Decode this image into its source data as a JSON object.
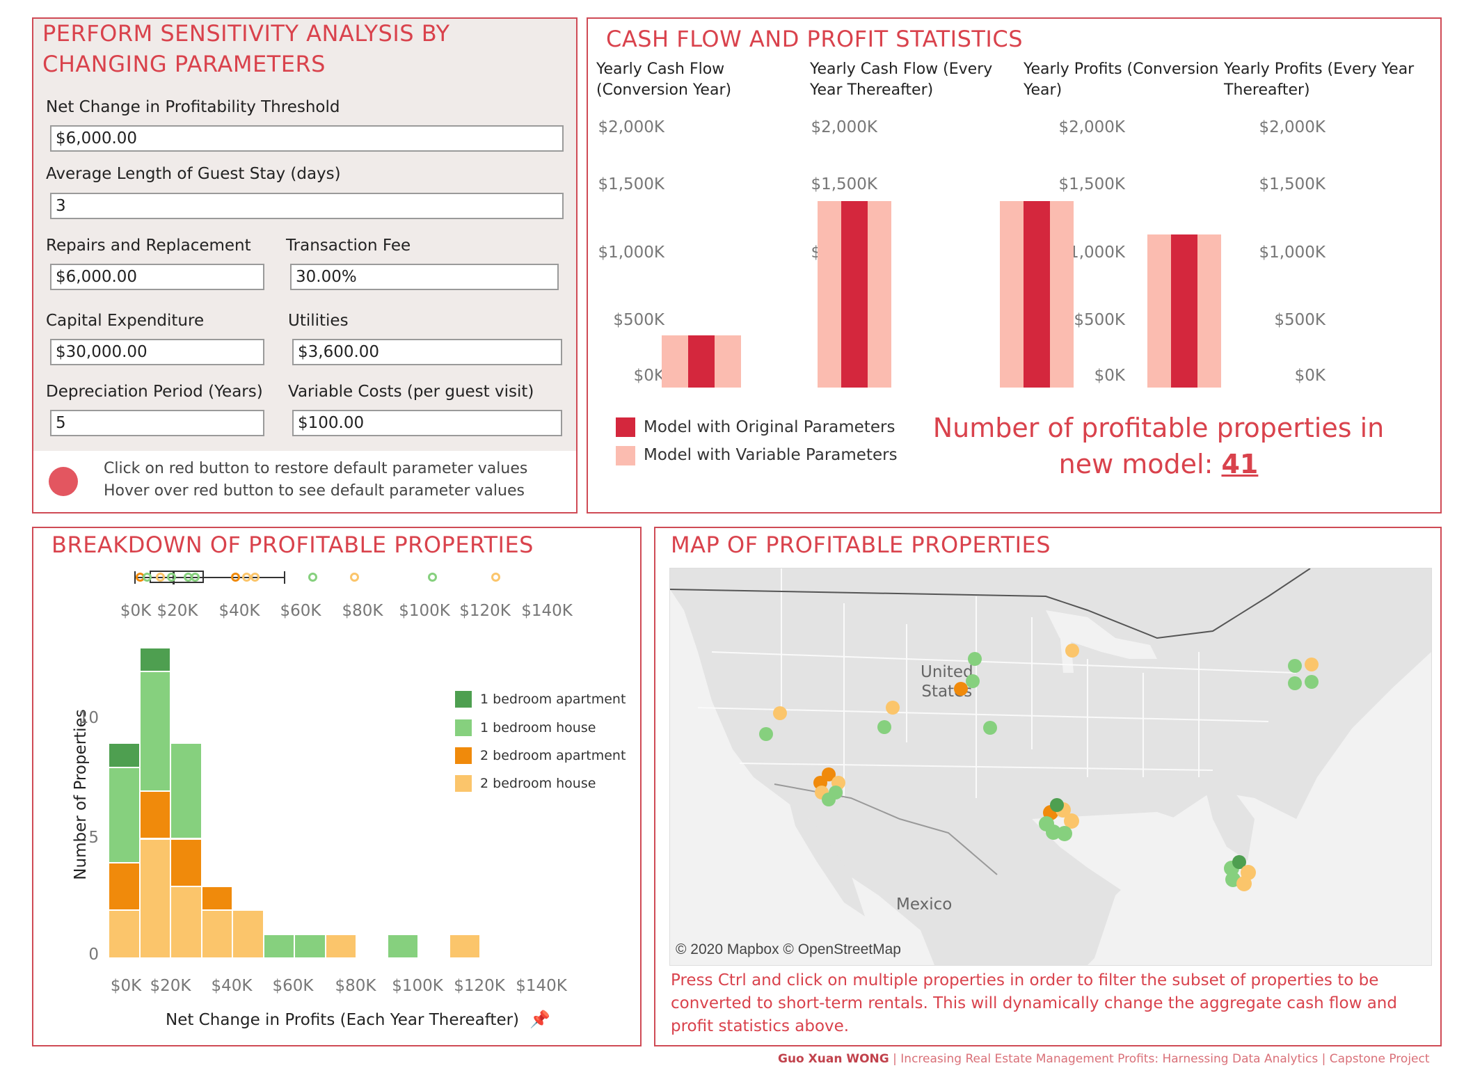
{
  "params": {
    "title_line1": "PERFORM SENSITIVITY ANALYSIS BY",
    "title_line2": "CHANGING PARAMETERS",
    "net_change_label": "Net Change in Profitability Threshold",
    "net_change_value": "$6,000.00",
    "avg_stay_label": "Average Length of Guest Stay (days)",
    "avg_stay_value": "3",
    "repairs_label": "Repairs and Replacement",
    "repairs_value": "$6,000.00",
    "txn_fee_label": "Transaction Fee",
    "txn_fee_value": "30.00%",
    "capex_label": "Capital Expenditure",
    "capex_value": "$30,000.00",
    "utilities_label": "Utilities",
    "utilities_value": "$3,600.00",
    "depreciation_label": "Depreciation Period (Years)",
    "depreciation_value": "5",
    "variable_label": "Variable Costs (per guest visit)",
    "variable_value": "$100.00",
    "restore_line1": "Click on red button to restore default parameter values",
    "restore_line2": "Hover over red button to see default parameter values",
    "restore_color": "#e35660"
  },
  "cashflow": {
    "title": "CASH FLOW AND PROFIT STATISTICS",
    "charts": [
      {
        "title_line1": "Yearly Cash Flow",
        "title_line2": "(Conversion Year)",
        "variable": 390,
        "original": 390
      },
      {
        "title_line1": "Yearly Cash Flow (Every",
        "title_line2": "Year Thereafter)",
        "variable": 1390,
        "original": 1390
      },
      {
        "title_line1": "Yearly Profits (Conversion",
        "title_line2": "Year)",
        "variable": 1390,
        "original": 1390
      },
      {
        "title_line1": "Yearly Profits (Every Year",
        "title_line2": "Thereafter)",
        "variable": 1140,
        "original": 1140
      }
    ],
    "ticks": [
      "$2,000K",
      "$1,500K",
      "$1,000K",
      "$500K",
      "$0K"
    ],
    "legend_original": "Model with Original Parameters",
    "legend_variable": "Model with Variable Parameters",
    "color_original": "#d4273d",
    "color_variable": "#fbbcb0",
    "profitable_text_line1": "Number of profitable properties in",
    "profitable_text_line2": "new model: ",
    "profitable_count": "41"
  },
  "breakdown": {
    "title": "BREAKDOWN OF PROFITABLE PROPERTIES",
    "box_ticks": [
      "$0K",
      "$20K",
      "$40K",
      "$60K",
      "$80K",
      "$100K",
      "$120K",
      "$140K"
    ],
    "x_ticks": [
      "$0K",
      "$20K",
      "$40K",
      "$60K",
      "$80K",
      "$100K",
      "$120K",
      "$140K"
    ],
    "y_ticks": [
      "10",
      "5",
      "0"
    ],
    "ylabel": "Number of Properties",
    "xlabel": "Net Change in Profits (Each Year Thereafter)",
    "legend": [
      {
        "label": "1 bedroom apartment",
        "color": "#4e9f50"
      },
      {
        "label": "1 bedroom house",
        "color": "#86d07e"
      },
      {
        "label": "2 bedroom apartment",
        "color": "#f08a0b"
      },
      {
        "label": "2 bedroom house",
        "color": "#fbc56b"
      }
    ]
  },
  "chart_data": {
    "type": "bar",
    "stacked": true,
    "title": "BREAKDOWN OF PROFITABLE PROPERTIES",
    "xlabel": "Net Change in Profits (Each Year Thereafter)",
    "ylabel": "Number of Properties",
    "categories": [
      "$0K-$10K",
      "$10K-$20K",
      "$20K-$30K",
      "$30K-$40K",
      "$40K-$50K",
      "$50K-$60K",
      "$60K-$70K",
      "$70K-$80K",
      "$80K-$90K",
      "$90K-$100K",
      "$100K-$110K",
      "$110K-$120K",
      "$120K-$130K"
    ],
    "series": [
      {
        "name": "2 bedroom house",
        "values": [
          2,
          5,
          3,
          2,
          2,
          0,
          0,
          1,
          0,
          0,
          0,
          1,
          0
        ]
      },
      {
        "name": "2 bedroom apartment",
        "values": [
          2,
          2,
          2,
          1,
          0,
          0,
          0,
          0,
          0,
          0,
          0,
          0,
          0
        ]
      },
      {
        "name": "1 bedroom house",
        "values": [
          4,
          5,
          4,
          0,
          0,
          1,
          1,
          0,
          0,
          1,
          0,
          0,
          0
        ]
      },
      {
        "name": "1 bedroom apartment",
        "values": [
          1,
          1,
          0,
          0,
          0,
          0,
          0,
          0,
          0,
          0,
          0,
          0,
          0
        ]
      }
    ],
    "ylim": [
      0,
      13.5
    ],
    "xlim": [
      0,
      140
    ]
  },
  "map": {
    "title": "MAP OF PROFITABLE PROPERTIES",
    "label_us_line1": "United",
    "label_us_line2": "States",
    "label_mexico": "Mexico",
    "attribution": "© 2020 Mapbox © OpenStreetMap",
    "instructions": "Press Ctrl and click on multiple properties in order to filter the subset of properties to be converted to short-term rentals. This will dynamically change the aggregate cash flow and profit statistics above.",
    "land_color": "#e3e3e3",
    "water_color": "#f2f2f2"
  },
  "footer": {
    "author": "Guo Xuan WONG",
    "sep": " | ",
    "project": "Increasing Real Estate Management Profits: Harnessing Data Analytics | Capstone Project"
  }
}
